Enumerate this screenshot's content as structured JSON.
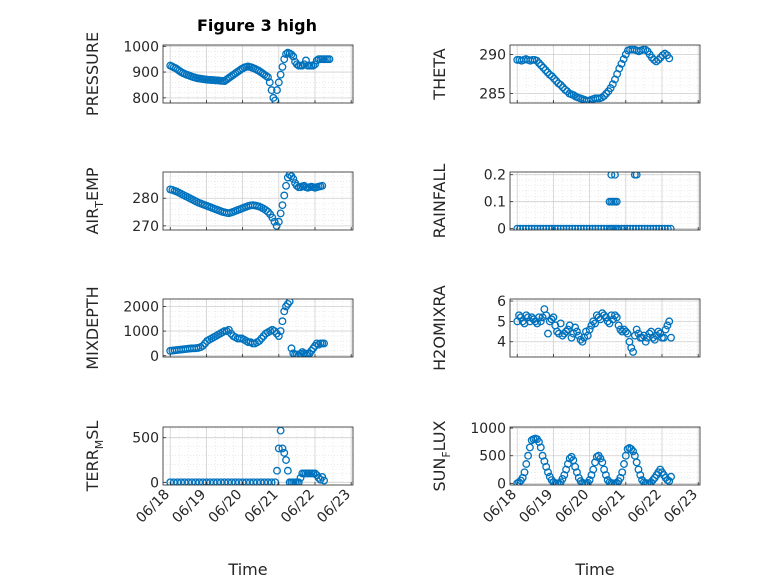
{
  "figure": {
    "title": "Figure 3 high",
    "x_ticks": [
      "06/18",
      "06/19",
      "06/20",
      "06/21",
      "06/22",
      "06/23"
    ],
    "x_axis_label": "Time",
    "marker_color": "#0072BD",
    "grid": "major and minor, dotted"
  },
  "chart_data": [
    {
      "type": "scatter",
      "panel": "pressure",
      "ylabel": {
        "main": "PRESSURE",
        "sub": ""
      },
      "yticks": [
        "800",
        "900",
        "1000"
      ],
      "ylim": [
        780,
        1005
      ],
      "x": [
        0.0,
        0.05,
        0.1,
        0.15,
        0.2,
        0.25,
        0.3,
        0.35,
        0.4,
        0.45,
        0.5,
        0.55,
        0.6,
        0.65,
        0.7,
        0.75,
        0.8,
        0.85,
        0.9,
        0.95,
        1.0,
        1.05,
        1.1,
        1.15,
        1.2,
        1.25,
        1.3,
        1.35,
        1.4,
        1.45,
        1.5,
        1.55,
        1.6,
        1.65,
        1.7,
        1.75,
        1.8,
        1.85,
        1.9,
        1.95,
        2.0,
        2.05,
        2.1,
        2.15,
        2.2,
        2.25,
        2.3,
        2.35,
        2.4,
        2.45,
        2.5,
        2.55,
        2.6,
        2.65,
        2.7,
        2.75,
        2.8,
        2.85,
        2.9,
        2.95,
        3.0,
        3.05,
        3.1,
        3.15,
        3.2,
        3.25,
        3.3,
        3.35,
        3.4,
        3.45,
        3.5,
        3.55,
        3.6,
        3.65,
        3.7,
        3.75,
        3.8,
        3.85,
        3.9,
        3.95,
        4.0,
        4.05,
        4.1,
        4.15,
        4.2,
        4.25,
        4.3,
        4.35,
        4.4
      ],
      "y": [
        925,
        922,
        918,
        915,
        910,
        905,
        900,
        896,
        893,
        890,
        888,
        885,
        882,
        880,
        878,
        876,
        875,
        874,
        873,
        872,
        871,
        870,
        870,
        869,
        869,
        868,
        868,
        867,
        866,
        866,
        865,
        870,
        875,
        880,
        885,
        890,
        895,
        900,
        905,
        910,
        914,
        918,
        920,
        922,
        920,
        918,
        915,
        912,
        908,
        905,
        900,
        895,
        890,
        885,
        880,
        860,
        830,
        800,
        790,
        830,
        860,
        890,
        920,
        950,
        970,
        975,
        972,
        968,
        960,
        940,
        930,
        925,
        925,
        925,
        930,
        945,
        925,
        925,
        925,
        925,
        930,
        945,
        950,
        950,
        950,
        950,
        950,
        950,
        950
      ],
      "marker": "open-circle"
    },
    {
      "type": "scatter",
      "panel": "theta",
      "ylabel": {
        "main": "THETA",
        "sub": ""
      },
      "yticks": [
        "285",
        "290"
      ],
      "ylim": [
        283.8,
        291.2
      ],
      "x": [
        0.0,
        0.06,
        0.12,
        0.18,
        0.24,
        0.3,
        0.36,
        0.42,
        0.48,
        0.54,
        0.6,
        0.66,
        0.72,
        0.78,
        0.84,
        0.9,
        0.96,
        1.02,
        1.08,
        1.14,
        1.2,
        1.26,
        1.32,
        1.38,
        1.44,
        1.5,
        1.56,
        1.62,
        1.68,
        1.74,
        1.8,
        1.86,
        1.92,
        1.98,
        2.04,
        2.1,
        2.16,
        2.22,
        2.28,
        2.34,
        2.4,
        2.46,
        2.52,
        2.58,
        2.64,
        2.7,
        2.76,
        2.82,
        2.88,
        2.94,
        3.0,
        3.06,
        3.12,
        3.18,
        3.24,
        3.3,
        3.36,
        3.42,
        3.48,
        3.54,
        3.6,
        3.66,
        3.72,
        3.78,
        3.84,
        3.9,
        3.96,
        4.02,
        4.08,
        4.14,
        4.2
      ],
      "y": [
        289.3,
        289.3,
        289.2,
        289.3,
        289.4,
        289.3,
        289.2,
        289.3,
        289.3,
        289.2,
        288.9,
        288.6,
        288.3,
        288.0,
        287.7,
        287.4,
        287.2,
        286.9,
        286.6,
        286.3,
        286.1,
        285.8,
        285.5,
        285.3,
        285.0,
        284.9,
        284.8,
        284.6,
        284.5,
        284.4,
        284.3,
        284.2,
        284.1,
        284.1,
        284.2,
        284.3,
        284.4,
        284.4,
        284.4,
        284.5,
        284.7,
        285.0,
        285.3,
        285.7,
        286.2,
        286.8,
        287.5,
        288.2,
        288.8,
        289.4,
        290.0,
        290.5,
        290.6,
        290.6,
        290.6,
        290.5,
        290.4,
        290.5,
        290.6,
        290.6,
        290.4,
        290.0,
        289.6,
        289.3,
        289.1,
        289.3,
        289.6,
        289.9,
        290.1,
        289.9,
        289.5
      ],
      "marker": "open-circle"
    },
    {
      "type": "scatter",
      "panel": "air-temp",
      "ylabel": {
        "main": "AIR",
        "sub": "T",
        "rest": "EMP"
      },
      "yticks": [
        "270",
        "280"
      ],
      "ylim": [
        268.5,
        289.5
      ],
      "x": [
        0.0,
        0.06,
        0.12,
        0.18,
        0.24,
        0.3,
        0.36,
        0.42,
        0.48,
        0.54,
        0.6,
        0.66,
        0.72,
        0.78,
        0.84,
        0.9,
        0.96,
        1.02,
        1.08,
        1.14,
        1.2,
        1.26,
        1.32,
        1.38,
        1.44,
        1.5,
        1.56,
        1.62,
        1.68,
        1.74,
        1.8,
        1.86,
        1.92,
        1.98,
        2.04,
        2.1,
        2.16,
        2.22,
        2.28,
        2.34,
        2.4,
        2.46,
        2.52,
        2.58,
        2.64,
        2.7,
        2.76,
        2.82,
        2.88,
        2.94,
        3.0,
        3.05,
        3.1,
        3.15,
        3.2,
        3.25,
        3.3,
        3.35,
        3.4,
        3.45,
        3.5,
        3.55,
        3.6,
        3.65,
        3.7,
        3.75,
        3.8,
        3.85,
        3.9,
        3.95,
        4.0,
        4.05,
        4.1,
        4.15,
        4.2
      ],
      "y": [
        283.2,
        283.0,
        282.7,
        282.4,
        282.0,
        281.6,
        281.2,
        280.8,
        280.4,
        280.0,
        279.6,
        279.2,
        278.8,
        278.4,
        278.1,
        277.8,
        277.5,
        277.2,
        276.9,
        276.6,
        276.3,
        276.0,
        275.7,
        275.4,
        275.1,
        274.9,
        274.7,
        274.6,
        274.8,
        275.1,
        275.4,
        275.7,
        276.0,
        276.3,
        276.6,
        276.9,
        277.2,
        277.4,
        277.5,
        277.4,
        277.2,
        277.0,
        276.6,
        276.2,
        275.7,
        275.1,
        274.2,
        273.0,
        271.5,
        270.0,
        271.5,
        274.5,
        277.5,
        281.0,
        284.5,
        287.5,
        288.5,
        288.0,
        287.0,
        285.5,
        284.5,
        284.0,
        284.0,
        284.3,
        284.5,
        284.0,
        283.8,
        284.0,
        284.2,
        284.0,
        283.8,
        284.0,
        284.2,
        284.3,
        284.5
      ],
      "marker": "open-circle"
    },
    {
      "type": "scatter",
      "panel": "rainfall",
      "ylabel": {
        "main": "RAINFALL",
        "sub": ""
      },
      "yticks": [
        "0",
        "0.1",
        "0.2"
      ],
      "ylim": [
        -0.005,
        0.21
      ],
      "x": [
        0.0,
        0.08,
        0.16,
        0.24,
        0.32,
        0.4,
        0.48,
        0.56,
        0.64,
        0.72,
        0.8,
        0.88,
        0.96,
        1.04,
        1.12,
        1.2,
        1.28,
        1.36,
        1.44,
        1.52,
        1.6,
        1.68,
        1.76,
        1.84,
        1.92,
        2.0,
        2.08,
        2.16,
        2.24,
        2.32,
        2.4,
        2.48,
        2.55,
        2.6,
        2.65,
        2.7,
        2.75,
        2.8,
        2.88,
        2.96,
        3.04,
        3.12,
        3.2,
        3.28,
        3.36,
        3.44,
        3.52,
        3.6,
        3.68,
        3.76,
        3.84,
        3.92,
        4.0,
        4.08,
        4.16,
        4.24,
        2.55,
        2.6,
        2.65,
        2.7,
        2.75,
        2.6,
        2.7,
        3.25,
        3.3
      ],
      "y": [
        0,
        0,
        0,
        0,
        0,
        0,
        0,
        0,
        0,
        0,
        0,
        0,
        0,
        0,
        0,
        0,
        0,
        0,
        0,
        0,
        0,
        0,
        0,
        0,
        0,
        0,
        0,
        0,
        0,
        0,
        0,
        0,
        0,
        0,
        0,
        0,
        0,
        0,
        0,
        0,
        0,
        0,
        0,
        0,
        0,
        0,
        0,
        0,
        0,
        0,
        0,
        0,
        0,
        0,
        0,
        0,
        0.1,
        0.1,
        0.1,
        0.1,
        0.1,
        0.2,
        0.2,
        0.2,
        0.2
      ],
      "marker": "open-circle"
    },
    {
      "type": "scatter",
      "panel": "mixdepth",
      "ylabel": {
        "main": "MIXDEPTH",
        "sub": ""
      },
      "yticks": [
        "0",
        "1000",
        "2000"
      ],
      "ylim": [
        -50,
        2300
      ],
      "x": [
        0.0,
        0.06,
        0.12,
        0.18,
        0.24,
        0.3,
        0.36,
        0.42,
        0.48,
        0.54,
        0.6,
        0.66,
        0.72,
        0.78,
        0.84,
        0.9,
        0.96,
        1.02,
        1.08,
        1.14,
        1.2,
        1.26,
        1.32,
        1.38,
        1.44,
        1.5,
        1.56,
        1.62,
        1.68,
        1.74,
        1.8,
        1.86,
        1.92,
        1.98,
        2.04,
        2.1,
        2.16,
        2.22,
        2.28,
        2.34,
        2.4,
        2.46,
        2.52,
        2.58,
        2.64,
        2.7,
        2.76,
        2.82,
        2.88,
        2.94,
        3.0,
        3.05,
        3.1,
        3.15,
        3.2,
        3.25,
        3.3,
        3.35,
        3.4,
        3.45,
        3.5,
        3.55,
        3.6,
        3.65,
        3.7,
        3.75,
        3.8,
        3.85,
        3.9,
        3.95,
        4.0,
        4.05,
        4.1,
        4.15,
        4.2,
        4.25
      ],
      "y": [
        200,
        210,
        220,
        230,
        240,
        250,
        260,
        270,
        280,
        290,
        300,
        300,
        310,
        320,
        350,
        400,
        500,
        600,
        650,
        700,
        750,
        800,
        850,
        900,
        950,
        1000,
        1000,
        1050,
        900,
        800,
        750,
        700,
        700,
        700,
        650,
        600,
        550,
        550,
        500,
        500,
        550,
        600,
        700,
        800,
        900,
        950,
        1000,
        1050,
        1000,
        900,
        800,
        1000,
        1400,
        1800,
        2000,
        2100,
        2200,
        300,
        100,
        50,
        50,
        30,
        80,
        150,
        100,
        80,
        90,
        100,
        200,
        300,
        400,
        500,
        450,
        500,
        500,
        500
      ],
      "marker": "open-circle"
    },
    {
      "type": "scatter",
      "panel": "h2omixra",
      "ylabel": {
        "main": "H2OMIXRA",
        "sub": ""
      },
      "yticks": [
        "4",
        "5",
        "6"
      ],
      "ylim": [
        3.25,
        6.1
      ],
      "x": [
        0.0,
        0.05,
        0.1,
        0.15,
        0.2,
        0.25,
        0.3,
        0.35,
        0.4,
        0.45,
        0.5,
        0.55,
        0.6,
        0.65,
        0.7,
        0.75,
        0.8,
        0.85,
        0.9,
        0.95,
        1.0,
        1.05,
        1.1,
        1.15,
        1.2,
        1.25,
        1.3,
        1.35,
        1.4,
        1.45,
        1.5,
        1.55,
        1.6,
        1.65,
        1.7,
        1.75,
        1.8,
        1.85,
        1.9,
        1.95,
        2.0,
        2.05,
        2.1,
        2.15,
        2.2,
        2.25,
        2.3,
        2.35,
        2.4,
        2.45,
        2.5,
        2.55,
        2.6,
        2.65,
        2.7,
        2.75,
        2.8,
        2.85,
        2.9,
        2.95,
        3.0,
        3.05,
        3.1,
        3.15,
        3.2,
        3.25,
        3.3,
        3.35,
        3.4,
        3.45,
        3.5,
        3.55,
        3.6,
        3.65,
        3.7,
        3.75,
        3.8,
        3.85,
        3.9,
        3.95,
        4.0,
        4.05,
        4.1,
        4.15,
        4.2,
        4.25
      ],
      "y": [
        5.0,
        5.3,
        5.2,
        5.0,
        4.9,
        5.3,
        5.2,
        5.0,
        5.2,
        5.1,
        5.0,
        4.9,
        5.2,
        5.0,
        5.2,
        5.6,
        5.3,
        4.4,
        5.0,
        5.1,
        5.2,
        4.8,
        4.5,
        4.4,
        4.9,
        4.3,
        4.4,
        4.5,
        4.6,
        4.8,
        4.2,
        4.4,
        4.7,
        4.5,
        4.3,
        4.1,
        4.0,
        4.2,
        4.5,
        4.3,
        4.6,
        4.8,
        5.0,
        4.9,
        5.3,
        5.2,
        5.1,
        5.4,
        5.3,
        5.2,
        5.0,
        4.9,
        5.3,
        5.1,
        5.3,
        5.2,
        4.8,
        4.6,
        4.5,
        4.6,
        4.5,
        4.4,
        4.0,
        3.7,
        3.5,
        4.3,
        4.6,
        4.4,
        4.2,
        4.2,
        4.3,
        4.0,
        4.2,
        4.4,
        4.5,
        4.2,
        4.1,
        4.3,
        4.5,
        4.4,
        4.2,
        4.2,
        4.6,
        4.8,
        5.0,
        4.2
      ],
      "marker": "open-circle"
    },
    {
      "type": "scatter",
      "panel": "terr-msl",
      "ylabel": {
        "main": "TERR",
        "sub": "M",
        "rest": "SL"
      },
      "yticks": [
        "0",
        "500"
      ],
      "ylim": [
        -30,
        620
      ],
      "x": [
        0.0,
        0.1,
        0.2,
        0.3,
        0.4,
        0.5,
        0.6,
        0.7,
        0.8,
        0.9,
        1.0,
        1.1,
        1.2,
        1.3,
        1.4,
        1.5,
        1.6,
        1.7,
        1.8,
        1.9,
        2.0,
        2.1,
        2.2,
        2.3,
        2.4,
        2.5,
        2.6,
        2.7,
        2.8,
        2.9,
        2.95,
        3.0,
        3.05,
        3.1,
        3.15,
        3.2,
        3.25,
        3.3,
        3.35,
        3.4,
        3.45,
        3.5,
        3.55,
        3.6,
        3.65,
        3.7,
        3.75,
        3.8,
        3.85,
        3.9,
        3.95,
        4.0,
        4.05,
        4.1,
        4.15,
        4.2,
        4.25
      ],
      "y": [
        0,
        0,
        0,
        0,
        0,
        0,
        0,
        0,
        0,
        0,
        0,
        0,
        0,
        0,
        0,
        0,
        0,
        0,
        0,
        0,
        0,
        0,
        0,
        0,
        0,
        0,
        0,
        0,
        0,
        0,
        130,
        380,
        580,
        380,
        330,
        250,
        130,
        0,
        0,
        0,
        0,
        0,
        0,
        50,
        100,
        100,
        100,
        100,
        100,
        100,
        100,
        100,
        80,
        50,
        30,
        60,
        20
      ],
      "marker": "open-circle"
    },
    {
      "type": "scatter",
      "panel": "sun-flux",
      "ylabel": {
        "main": "SUN",
        "sub": "F",
        "rest": "LUX"
      },
      "yticks": [
        "0",
        "500",
        "1000"
      ],
      "ylim": [
        -30,
        1020
      ],
      "x": [
        0.0,
        0.05,
        0.1,
        0.15,
        0.2,
        0.25,
        0.3,
        0.35,
        0.4,
        0.45,
        0.5,
        0.55,
        0.6,
        0.65,
        0.7,
        0.75,
        0.8,
        0.85,
        0.9,
        0.95,
        1.0,
        1.05,
        1.1,
        1.15,
        1.2,
        1.25,
        1.3,
        1.35,
        1.4,
        1.45,
        1.5,
        1.55,
        1.6,
        1.65,
        1.7,
        1.75,
        1.8,
        1.85,
        1.9,
        1.95,
        2.0,
        2.05,
        2.1,
        2.15,
        2.2,
        2.25,
        2.3,
        2.35,
        2.4,
        2.45,
        2.5,
        2.55,
        2.6,
        2.65,
        2.7,
        2.75,
        2.8,
        2.85,
        2.9,
        2.95,
        3.0,
        3.05,
        3.1,
        3.15,
        3.2,
        3.25,
        3.3,
        3.35,
        3.4,
        3.45,
        3.5,
        3.55,
        3.6,
        3.65,
        3.7,
        3.75,
        3.8,
        3.85,
        3.9,
        3.95,
        4.0,
        4.05,
        4.1,
        4.15,
        4.2,
        4.25
      ],
      "y": [
        0,
        20,
        50,
        100,
        200,
        350,
        500,
        650,
        780,
        800,
        810,
        800,
        750,
        650,
        500,
        400,
        300,
        200,
        120,
        60,
        20,
        5,
        0,
        0,
        20,
        80,
        150,
        250,
        350,
        450,
        480,
        420,
        300,
        200,
        100,
        40,
        10,
        0,
        0,
        10,
        60,
        150,
        250,
        380,
        480,
        500,
        450,
        380,
        250,
        150,
        60,
        20,
        5,
        0,
        0,
        10,
        40,
        100,
        200,
        350,
        500,
        620,
        640,
        620,
        580,
        500,
        380,
        250,
        150,
        60,
        20,
        5,
        0,
        0,
        20,
        60,
        100,
        150,
        200,
        250,
        200,
        150,
        100,
        60,
        40,
        120
      ],
      "marker": "open-circle"
    }
  ]
}
